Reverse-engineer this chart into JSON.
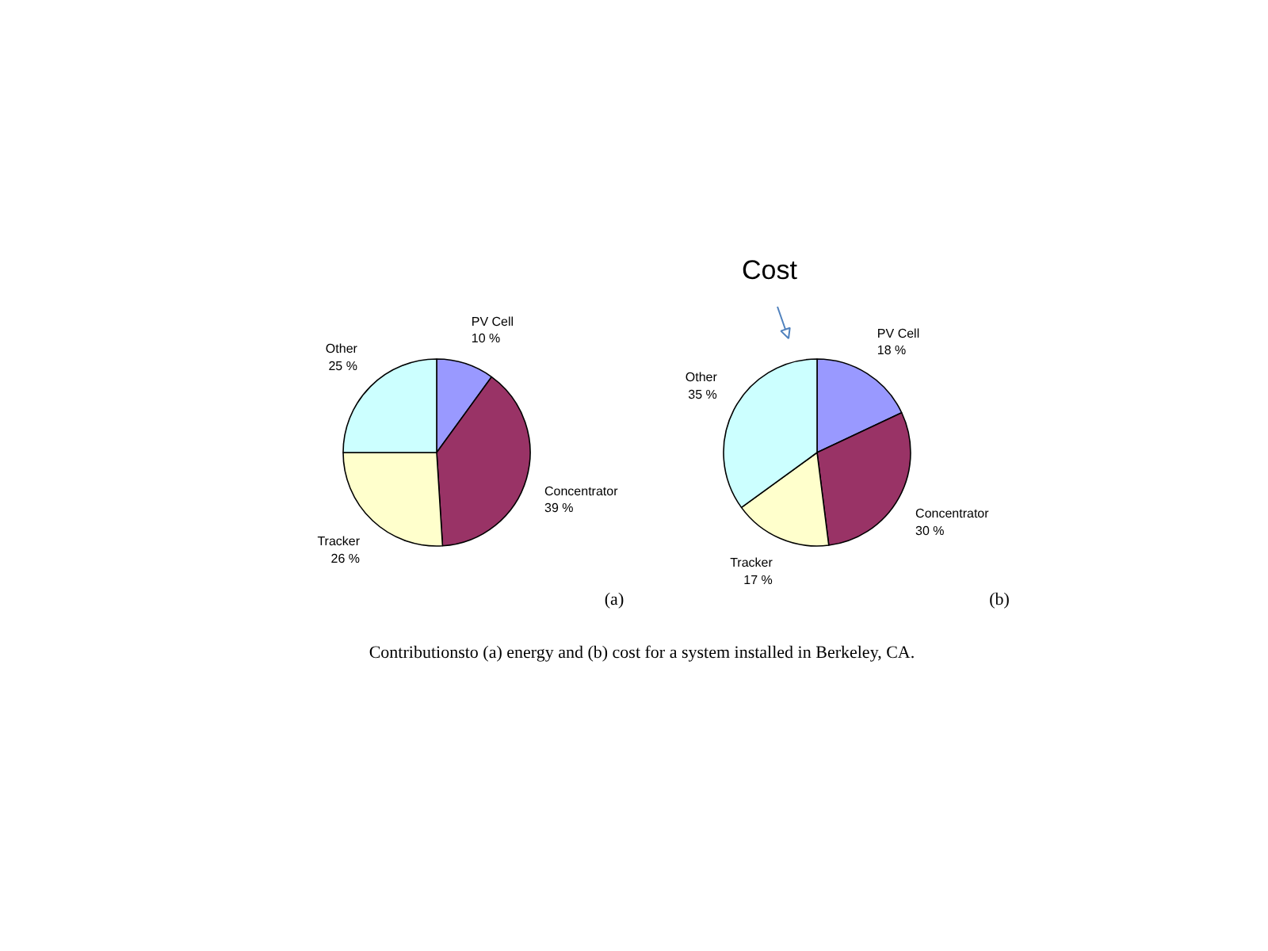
{
  "chart_data": [
    {
      "type": "pie",
      "categories": [
        "PV Cell",
        "Concentrator",
        "Tracker",
        "Other"
      ],
      "values": [
        10,
        39,
        26,
        25
      ],
      "value_labels": [
        "10 %",
        "39 %",
        "26 %",
        "25 %"
      ],
      "colors": [
        "#9999ff",
        "#993366",
        "#ffffcc",
        "#ccffff"
      ],
      "annotations": [
        "(a)",
        "Contributionsto (a) energy and (b) cost for a system installed in Berkeley, CA."
      ]
    },
    {
      "type": "pie",
      "title": "Cost",
      "categories": [
        "PV Cell",
        "Concentrator",
        "Tracker",
        "Other"
      ],
      "values": [
        18,
        30,
        17,
        35
      ],
      "value_labels": [
        "18 %",
        "30 %",
        "17 %",
        "35 %"
      ],
      "colors": [
        "#9999ff",
        "#993366",
        "#ffffcc",
        "#ccffff"
      ],
      "annotations": [
        "(b)"
      ]
    }
  ]
}
